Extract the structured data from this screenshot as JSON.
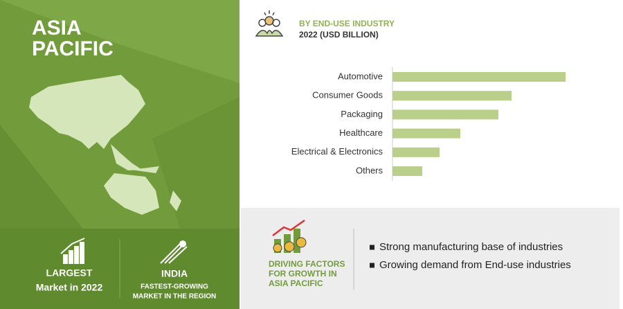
{
  "region": {
    "title_lines": [
      "ASIA",
      "PACIFIC"
    ],
    "largest": {
      "label": "LARGEST",
      "sub": "Market in 2022"
    },
    "fastest": {
      "label": "INDIA",
      "sub_lines": [
        "FASTEST-GROWING",
        "MARKET IN THE REGION"
      ]
    }
  },
  "chart_data": {
    "type": "bar",
    "orientation": "horizontal",
    "title": "BY END-USE INDUSTRY",
    "subtitle": "2022 (USD BILLION)",
    "categories": [
      "Automotive",
      "Consumer Goods",
      "Packaging",
      "Healthcare",
      "Electrical & Electronics",
      "Others"
    ],
    "values": [
      25.0,
      17.2,
      15.3,
      9.8,
      6.8,
      4.3
    ],
    "color": "#b9cf8a"
  },
  "drivers": {
    "title_lines": [
      "DRIVING FACTORS",
      "FOR GROWTH IN",
      "ASIA PACIFIC"
    ],
    "items": [
      "Strong manufacturing base of industries",
      "Growing demand from End-use industries"
    ]
  }
}
